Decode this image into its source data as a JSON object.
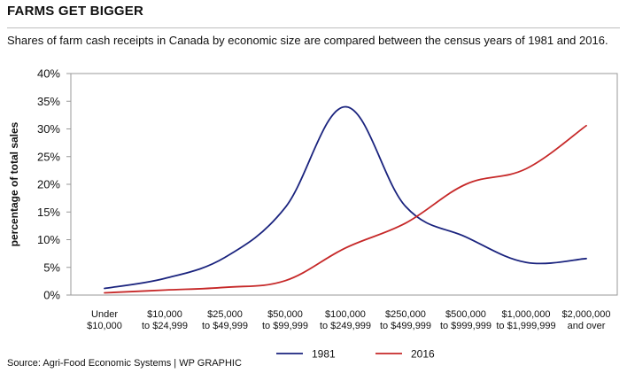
{
  "header": {
    "title": "FARMS GET BIGGER",
    "subtitle": "Shares of farm cash receipts in Canada by economic size are compared between the census years of 1981 and  2016."
  },
  "footer": {
    "source": "Source: Agri-Food Economic Systems  |  WP GRAPHIC"
  },
  "colors": {
    "series_1981": "#1a237e",
    "series_2016": "#c62828",
    "axis": "#999999",
    "text": "#111111"
  },
  "chart_data": {
    "type": "line",
    "ylabel": "percentage of total sales",
    "xlabel": "",
    "ylim": [
      0,
      40
    ],
    "yticks": [
      0,
      5,
      10,
      15,
      20,
      25,
      30,
      35,
      40
    ],
    "ytick_labels": [
      "0%",
      "5%",
      "10%",
      "15%",
      "20%",
      "25%",
      "30%",
      "35%",
      "40%"
    ],
    "grid": false,
    "legend_position": "bottom-center",
    "categories": [
      [
        "Under",
        "$10,000"
      ],
      [
        "$10,000",
        "to $24,999"
      ],
      [
        "$25,000",
        "to $49,999"
      ],
      [
        "$50,000",
        "to $99,999"
      ],
      [
        "$100,000",
        "to $249,999"
      ],
      [
        "$250,000",
        "to $499,999"
      ],
      [
        "$500,000",
        "to $999,999"
      ],
      [
        "$1,000,000",
        "to $1,999,999"
      ],
      [
        "$2,000,000",
        "and over"
      ]
    ],
    "series": [
      {
        "name": "1981",
        "color": "#1a237e",
        "values": [
          1.2,
          3.0,
          6.8,
          15.8,
          34.0,
          16.0,
          10.5,
          5.9,
          6.6
        ]
      },
      {
        "name": "2016",
        "color": "#c62828",
        "values": [
          0.4,
          0.9,
          1.4,
          2.6,
          8.5,
          13.0,
          20.0,
          22.8,
          30.6
        ]
      }
    ]
  }
}
